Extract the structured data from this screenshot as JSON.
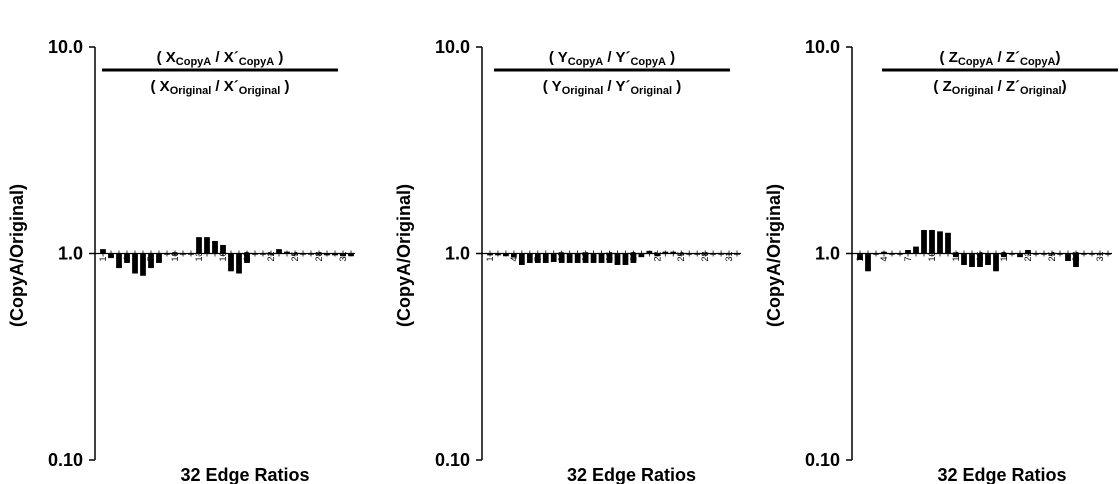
{
  "chart_data": [
    {
      "type": "bar",
      "ylabel": "(CopyA/Original)",
      "xlabel": "32 Edge Ratios",
      "yscale": "log",
      "ylim": [
        0.1,
        10
      ],
      "ytick_labels": [
        "10.0",
        "1.0",
        "0.10"
      ],
      "xtick_labels": [
        "1",
        "4",
        "7",
        "10",
        "13",
        "16",
        "19",
        "22",
        "25",
        "28",
        "31"
      ],
      "fraction": {
        "open": "( ",
        "var": "X",
        "prime": "X´",
        "copy": "CopyA",
        "orig": "Original",
        "sep": " / ",
        "close": " )"
      },
      "categories": [
        1,
        2,
        3,
        4,
        5,
        6,
        7,
        8,
        9,
        10,
        11,
        12,
        13,
        14,
        15,
        16,
        17,
        18,
        19,
        20,
        21,
        22,
        23,
        24,
        25,
        26,
        27,
        28,
        29,
        30,
        31,
        32
      ],
      "values": [
        1.05,
        0.95,
        0.85,
        0.9,
        0.8,
        0.78,
        0.85,
        0.9,
        1.0,
        1.0,
        1.0,
        1.0,
        1.2,
        1.2,
        1.15,
        1.1,
        0.82,
        0.8,
        0.9,
        1.0,
        1.0,
        1.0,
        1.05,
        1.02,
        1.0,
        1.0,
        1.0,
        1.0,
        0.98,
        0.98,
        0.97,
        0.97
      ]
    },
    {
      "type": "bar",
      "ylabel": "(CopyA/Original)",
      "xlabel": "32 Edge Ratios",
      "yscale": "log",
      "ylim": [
        0.1,
        10
      ],
      "ytick_labels": [
        "10.0",
        "1.0",
        "0.10"
      ],
      "xtick_labels": [
        "1",
        "4",
        "7",
        "10",
        "13",
        "16",
        "19",
        "22",
        "25",
        "28",
        "31"
      ],
      "fraction": {
        "open": "( ",
        "var": "Y",
        "prime": "Y´",
        "copy": "CopyA",
        "orig": "Original",
        "sep": " / ",
        "close": " )"
      },
      "categories": [
        1,
        2,
        3,
        4,
        5,
        6,
        7,
        8,
        9,
        10,
        11,
        12,
        13,
        14,
        15,
        16,
        17,
        18,
        19,
        20,
        21,
        22,
        23,
        24,
        25,
        26,
        27,
        28,
        29,
        30,
        31,
        32
      ],
      "values": [
        0.98,
        0.98,
        0.97,
        0.96,
        0.88,
        0.9,
        0.9,
        0.9,
        0.91,
        0.9,
        0.9,
        0.9,
        0.9,
        0.9,
        0.9,
        0.9,
        0.88,
        0.88,
        0.9,
        0.96,
        1.03,
        0.97,
        1.02,
        1.02,
        1.0,
        1.0,
        1.0,
        1.0,
        1.0,
        1.0,
        1.0,
        1.0
      ]
    },
    {
      "type": "bar",
      "ylabel": "(CopyA/Original)",
      "xlabel": "32 Edge Ratios",
      "yscale": "log",
      "ylim": [
        0.1,
        10
      ],
      "ytick_labels": [
        "10.0",
        "1.0",
        "0.10"
      ],
      "xtick_labels": [
        "1",
        "4",
        "7",
        "10",
        "13",
        "16",
        "19",
        "22",
        "25",
        "28",
        "31"
      ],
      "fraction": {
        "open": "( ",
        "var": "Z",
        "prime": "Z´",
        "copy": "CopyA",
        "orig": "Original",
        "sep": " / ",
        "close": ")"
      },
      "categories": [
        1,
        2,
        3,
        4,
        5,
        6,
        7,
        8,
        9,
        10,
        11,
        12,
        13,
        14,
        15,
        16,
        17,
        18,
        19,
        20,
        21,
        22,
        23,
        24,
        25,
        26,
        27,
        28,
        29,
        30,
        31,
        32
      ],
      "values": [
        0.93,
        0.82,
        1.0,
        1.02,
        1.0,
        1.0,
        1.04,
        1.08,
        1.3,
        1.3,
        1.28,
        1.26,
        0.96,
        0.88,
        0.86,
        0.86,
        0.88,
        0.82,
        0.96,
        1.0,
        0.96,
        1.04,
        1.0,
        1.0,
        1.0,
        1.0,
        0.92,
        0.86,
        1.0,
        1.0,
        1.0,
        1.0
      ]
    }
  ]
}
